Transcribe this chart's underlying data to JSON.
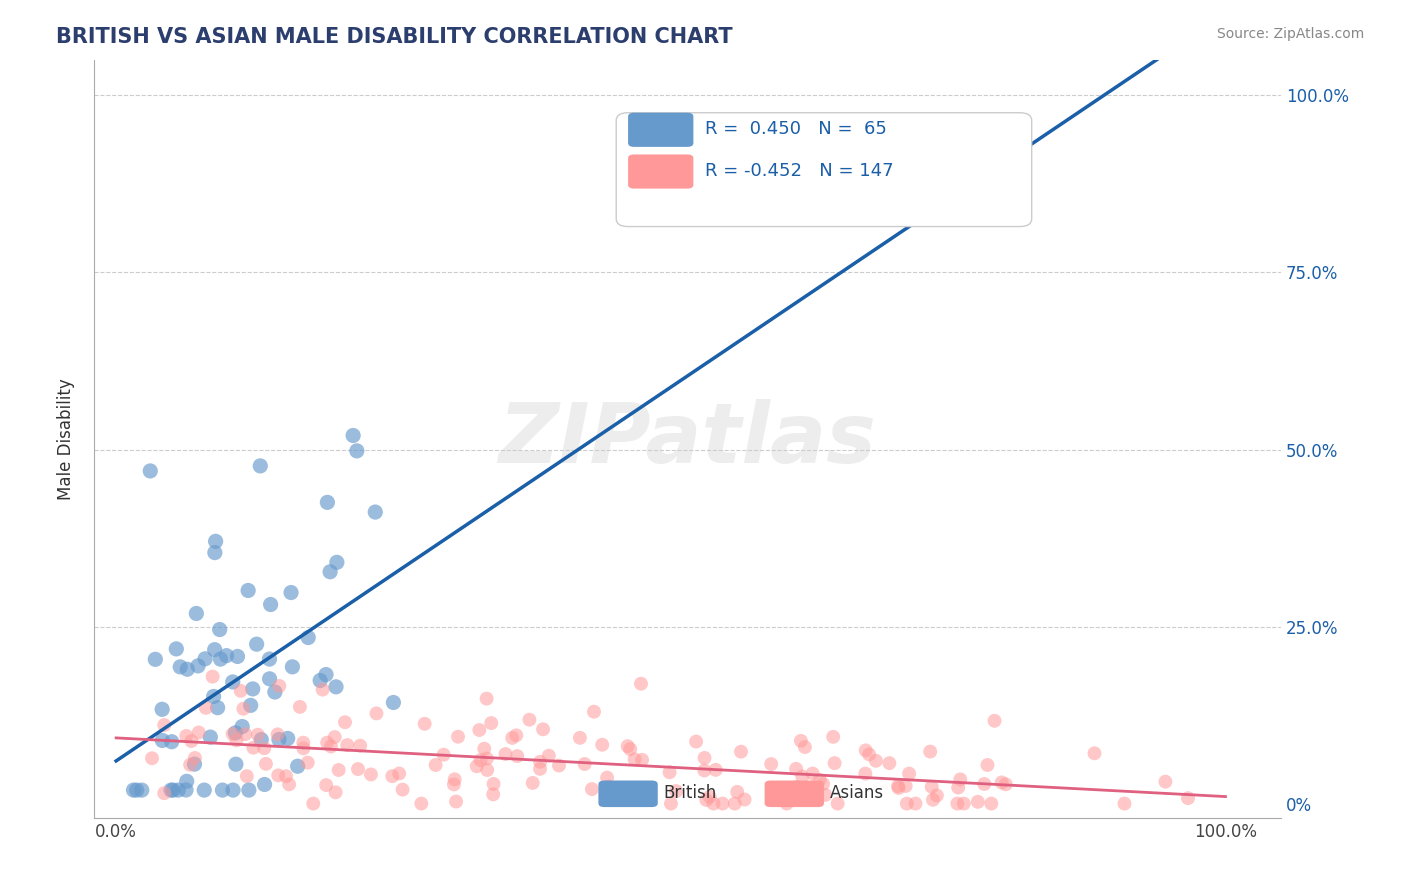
{
  "title": "BRITISH VS ASIAN MALE DISABILITY CORRELATION CHART",
  "source_text": "Source: ZipAtlas.com",
  "xlabel": "",
  "ylabel": "Male Disability",
  "watermark": "ZIPatlas",
  "xlim": [
    0.0,
    1.0
  ],
  "ylim": [
    0.0,
    1.0
  ],
  "xtick_labels": [
    "0.0%",
    "100.0%"
  ],
  "ytick_labels_right": [
    "0%",
    "25.0%",
    "50.0%",
    "75.0%",
    "100.0%"
  ],
  "british_color": "#6699cc",
  "asian_color": "#ff9999",
  "british_line_color": "#1a5fa8",
  "asian_line_color": "#e06080",
  "legend_r_british": "R =  0.450",
  "legend_n_british": "N =  65",
  "legend_r_asian": "R = -0.452",
  "legend_n_asian": "N = 147",
  "title_color": "#2c3e6e",
  "source_color": "#888888",
  "grid_color": "#cccccc",
  "british_R": 0.45,
  "british_N": 65,
  "asian_R": -0.452,
  "asian_N": 147,
  "british_seed": 42,
  "asian_seed": 123
}
